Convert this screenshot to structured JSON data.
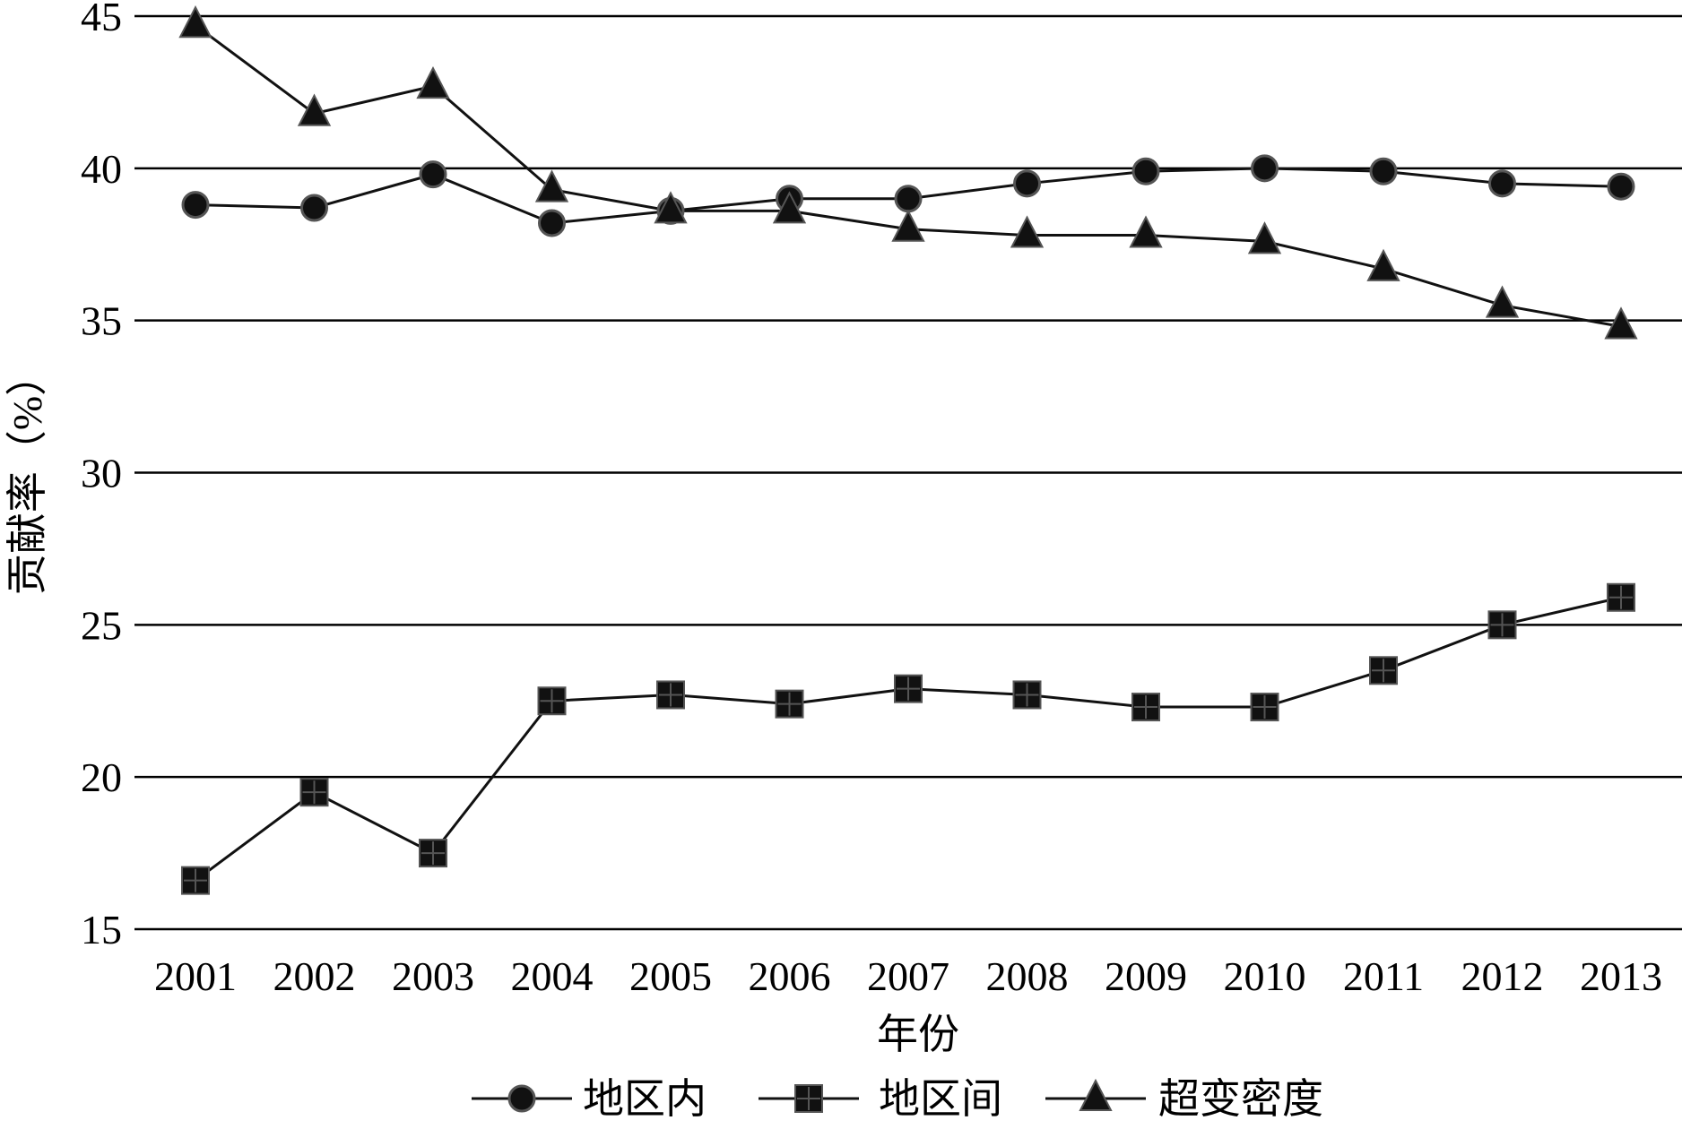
{
  "chart_data": {
    "type": "line",
    "xlabel": "年份",
    "ylabel": "贡献率（%）",
    "ylim": [
      15,
      45
    ],
    "yticks": [
      15,
      20,
      25,
      30,
      35,
      40,
      45
    ],
    "categories": [
      "2001",
      "2002",
      "2003",
      "2004",
      "2005",
      "2006",
      "2007",
      "2008",
      "2009",
      "2010",
      "2011",
      "2012",
      "2013"
    ],
    "grid": "horizontal",
    "legend_position": "bottom",
    "series": [
      {
        "name": "地区内",
        "marker": "circle",
        "values": [
          38.8,
          38.7,
          39.8,
          38.2,
          38.6,
          39.0,
          39.0,
          39.5,
          39.9,
          40.0,
          39.9,
          39.5,
          39.4
        ]
      },
      {
        "name": "地区间",
        "marker": "square",
        "values": [
          16.6,
          19.5,
          17.5,
          22.5,
          22.7,
          22.4,
          22.9,
          22.7,
          22.3,
          22.3,
          23.5,
          25.0,
          25.9
        ]
      },
      {
        "name": "超变密度",
        "marker": "triangle",
        "values": [
          44.7,
          41.8,
          42.7,
          39.3,
          38.6,
          38.6,
          38.0,
          37.8,
          37.8,
          37.6,
          36.7,
          35.5,
          34.8
        ]
      }
    ]
  }
}
